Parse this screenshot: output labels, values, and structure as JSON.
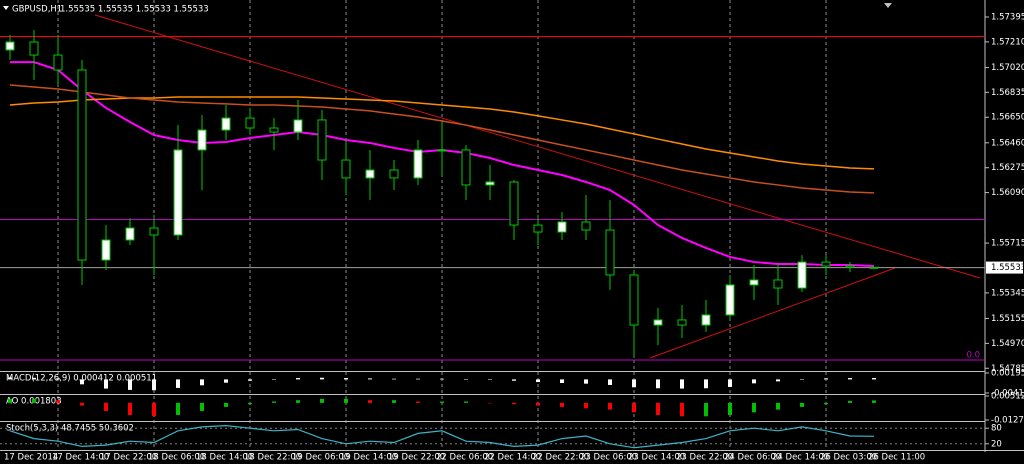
{
  "chart_data": [
    {
      "type": "candlestick",
      "title": "GBPUSD,H1",
      "ohlc_label": "1.55535 1.55535 1.55533 1.55533",
      "x": [
        "17 Dec 2014",
        null,
        "17 Dec 14:00",
        null,
        "17 Dec 22:00",
        null,
        "18 Dec 06:00",
        null,
        "18 Dec 14:00",
        null,
        "18 Dec 22:00",
        null,
        "19 Dec 06:00",
        null,
        "19 Dec 14:00",
        null,
        "19 Dec 22:00",
        null,
        "22 Dec 06:00",
        null,
        "22 Dec 14:00",
        null,
        "22 Dec 22:00",
        null,
        "23 Dec 06:00",
        null,
        "23 Dec 14:00",
        null,
        "23 Dec 22:00",
        null,
        "24 Dec 06:00",
        null,
        "24 Dec 14:00",
        null,
        "26 Dec 03:00",
        null,
        "26 Dec 11:00"
      ],
      "open": [
        1.5715,
        1.57209,
        1.57112,
        1.57001,
        1.55589,
        1.55738,
        1.55827,
        1.55775,
        1.56407,
        1.56555,
        1.56644,
        1.5657,
        1.5654,
        1.5663,
        1.56332,
        1.56199,
        1.56258,
        1.56199,
        1.56407,
        1.56407,
        1.56147,
        1.56169,
        1.55849,
        1.55797,
        1.55872,
        1.55812,
        1.55478,
        1.55106,
        1.55144,
        1.55106,
        1.55181,
        1.55404,
        1.55441,
        1.55381,
        1.55574,
        1.55545,
        1.55535
      ],
      "high": [
        1.57261,
        1.57298,
        1.57261,
        1.57075,
        1.55849,
        1.55901,
        1.55924,
        1.56592,
        1.56667,
        1.56741,
        1.56719,
        1.56644,
        1.56778,
        1.56704,
        1.56481,
        1.56407,
        1.56332,
        1.56481,
        1.56615,
        1.56444,
        1.56295,
        1.56184,
        1.55924,
        1.55946,
        1.56072,
        1.56035,
        1.55515,
        1.55233,
        1.55255,
        1.55292,
        1.55478,
        1.55552,
        1.55552,
        1.55626,
        1.55626,
        1.55574,
        1.55535
      ],
      "low": [
        1.57075,
        1.56927,
        1.5689,
        1.55404,
        1.55515,
        1.55701,
        1.55478,
        1.55738,
        1.56109,
        1.56481,
        1.56518,
        1.56407,
        1.56481,
        1.56184,
        1.56072,
        1.56035,
        1.56109,
        1.56147,
        1.56221,
        1.56035,
        1.56035,
        1.55738,
        1.55701,
        1.55738,
        1.55738,
        1.55366,
        1.54861,
        1.54958,
        1.5501,
        1.55054,
        1.55144,
        1.55292,
        1.55255,
        1.55352,
        1.55478,
        1.555,
        1.55533
      ],
      "close": [
        1.57209,
        1.57112,
        1.57001,
        1.55589,
        1.55738,
        1.55827,
        1.55775,
        1.56407,
        1.56555,
        1.56644,
        1.5657,
        1.5654,
        1.5663,
        1.56332,
        1.56199,
        1.56258,
        1.56199,
        1.56407,
        1.56407,
        1.56147,
        1.56169,
        1.55849,
        1.55797,
        1.55872,
        1.55812,
        1.55478,
        1.55106,
        1.55144,
        1.55106,
        1.55181,
        1.55404,
        1.55441,
        1.55381,
        1.55574,
        1.55545,
        1.55535,
        1.55533
      ],
      "up_color": "#ffffff",
      "down_color": "#000000",
      "wick_color": "#00c800",
      "lines": [
        {
          "color": "#ff00ff",
          "values": [
            1.5706,
            1.5706,
            1.57001,
            1.56852,
            1.56719,
            1.56615,
            1.56518,
            1.56481,
            1.56459,
            1.56466,
            1.56496,
            1.56518,
            1.5654,
            1.56518,
            1.56481,
            1.56459,
            1.56422,
            1.56392,
            1.56407,
            1.56384,
            1.56347,
            1.56295,
            1.56258,
            1.56221,
            1.56169,
            1.56109,
            1.55998,
            1.55849,
            1.55753,
            1.55679,
            1.55612,
            1.55574,
            1.5556,
            1.5556,
            1.55552,
            1.55552,
            1.55545
          ]
        },
        {
          "color": "#ff8c00",
          "values": [
            1.56741,
            1.56756,
            1.56763,
            1.56778,
            1.56786,
            1.56793,
            1.56793,
            1.568,
            1.568,
            1.568,
            1.568,
            1.568,
            1.568,
            1.56793,
            1.56786,
            1.56778,
            1.56771,
            1.56756,
            1.56741,
            1.56726,
            1.56711,
            1.56689,
            1.5666,
            1.5663,
            1.566,
            1.56563,
            1.56526,
            1.56488,
            1.56451,
            1.56414,
            1.56384,
            1.56355,
            1.56325,
            1.56303,
            1.56288,
            1.56273,
            1.56266
          ]
        },
        {
          "color": "#c8501e",
          "values": [
            1.5689,
            1.56875,
            1.5686,
            1.56838,
            1.56815,
            1.56793,
            1.56778,
            1.56763,
            1.56756,
            1.56749,
            1.56741,
            1.56741,
            1.56734,
            1.56726,
            1.56711,
            1.56697,
            1.56674,
            1.56652,
            1.56622,
            1.56592,
            1.56555,
            1.56518,
            1.56481,
            1.56444,
            1.56407,
            1.5637,
            1.56332,
            1.56295,
            1.56258,
            1.56228,
            1.56199,
            1.56169,
            1.56147,
            1.56124,
            1.56109,
            1.56095,
            1.56088
          ]
        }
      ],
      "levels": [
        {
          "value": 1.5725,
          "color": "#ff0000"
        },
        {
          "value": 1.5589,
          "color": "#c000c0"
        },
        {
          "value": 1.54846,
          "color": "#c000c0",
          "label": "0.0"
        }
      ],
      "current_price": {
        "value": 1.55533,
        "label": "1.55533",
        "color": "#a0a0a0"
      },
      "ylim": [
        1.54772,
        1.57484
      ],
      "yticks": [
        1.57395,
        {
          "value": 1.5721,
          "label": "1.57210"
        },
        {
          "value": 1.5702,
          "label": "1.57020"
        },
        1.56835,
        {
          "value": 1.5665,
          "label": "1.56650"
        },
        {
          "value": 1.5646,
          "label": "1.56460"
        },
        1.56275,
        {
          "value": 1.5609,
          "label": "1.56090"
        },
        1.55715,
        1.55345,
        1.55155,
        {
          "value": 1.5497,
          "label": "1.54970"
        },
        1.54785
      ],
      "grid": true
    },
    {
      "type": "bar",
      "title": "MACD(12,26,9) 0.000412 0.000511",
      "color": "#ffffff",
      "values": [
        0.0006,
        0.0005,
        0.0003,
        -0.0015,
        -0.0028,
        -0.0032,
        -0.0033,
        -0.0026,
        -0.0018,
        -0.001,
        -0.0004,
        0.0001,
        0.0004,
        0.0005,
        0.0004,
        0.0003,
        0.0002,
        0.0002,
        0.0002,
        0.0001,
        0,
        -0.0004,
        -0.0008,
        -0.0011,
        -0.0013,
        -0.0017,
        -0.0024,
        -0.0027,
        -0.0028,
        -0.0027,
        -0.0023,
        -0.0012,
        -0.0006,
        -0.0001,
        0.0003,
        0.0004,
        0.000412
      ],
      "ylim": [
        -0.004151,
        0.001951
      ],
      "yticks": [
        0.001951,
        -0.004151
      ]
    },
    {
      "type": "oscillator-bar",
      "title": "AO 0.001803",
      "up_color": "#00c000",
      "down_color": "#ff0000",
      "values": [
        0.003,
        0.003,
        0.002,
        -0.002,
        -0.006,
        -0.009,
        -0.01,
        -0.009,
        -0.006,
        -0.003,
        -0.001,
        0.001,
        0.002,
        0.003,
        0.003,
        0.002,
        0.002,
        0.001,
        0.001,
        0.001,
        0,
        -0.001,
        -0.002,
        -0.003,
        -0.004,
        -0.005,
        -0.007,
        -0.009,
        -0.01,
        -0.01,
        -0.009,
        -0.007,
        -0.005,
        -0.003,
        -0.001,
        0.0015,
        0.001803
      ],
      "ylim": [
        -0.012738,
        0.005122
      ],
      "yticks": [
        0.005122,
        -0.012738
      ]
    },
    {
      "type": "line",
      "title": "Stoch(5,3,3) 48.7455 50.3602",
      "color": "#3cb4c8",
      "values": [
        70,
        40,
        30,
        10,
        15,
        30,
        25,
        70,
        85,
        90,
        80,
        70,
        75,
        40,
        20,
        30,
        25,
        60,
        70,
        30,
        25,
        10,
        15,
        40,
        50,
        20,
        5,
        15,
        25,
        40,
        70,
        80,
        70,
        85,
        70,
        50,
        48.7455
      ],
      "ylim": [
        0,
        100
      ],
      "yticks": [
        80,
        20
      ]
    }
  ]
}
